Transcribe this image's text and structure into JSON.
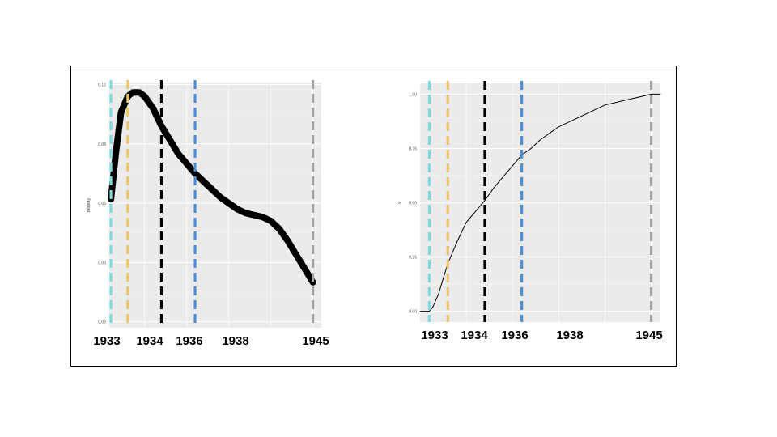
{
  "colors": {
    "panel_bg": "#ebebeb",
    "grid_major": "#ffffff",
    "grid_minor": "#f4f4f4",
    "tick_text": "#4d4d4d",
    "curve": "#000000",
    "vline_1933": "#7fd9e0",
    "vline_1934": "#ecc466",
    "vline_1936": "#000000",
    "vline_1938": "#4a8ed8",
    "vline_1945": "#a3a3a3"
  },
  "year_labels": [
    "1933",
    "1934",
    "1936",
    "1938",
    "1945"
  ],
  "chart_data": [
    {
      "type": "line",
      "ylabel": "density",
      "xlim": [
        1932.9,
        1945.5
      ],
      "ylim": [
        -0.003,
        0.121
      ],
      "yticks": [
        0.0,
        0.03,
        0.06,
        0.09,
        0.12
      ],
      "ytick_labels": [
        "0.00",
        "0.03",
        "0.06",
        "0.09",
        "0.12"
      ],
      "xgrid": [
        1935,
        1937.5,
        1940,
        1942.5,
        1945
      ],
      "vlines": [
        1933,
        1934,
        1936,
        1938,
        1945
      ],
      "x": [
        1933.0,
        1933.3,
        1933.6,
        1934.0,
        1934.3,
        1934.7,
        1935.0,
        1935.5,
        1936.0,
        1936.5,
        1937.0,
        1937.5,
        1938.0,
        1938.5,
        1939.0,
        1939.5,
        1940.0,
        1940.5,
        1941.0,
        1941.5,
        1942.0,
        1942.5,
        1943.0,
        1943.5,
        1944.0,
        1944.5,
        1945.0
      ],
      "y": [
        0.062,
        0.086,
        0.106,
        0.114,
        0.116,
        0.116,
        0.114,
        0.108,
        0.099,
        0.092,
        0.085,
        0.08,
        0.075,
        0.071,
        0.067,
        0.063,
        0.06,
        0.057,
        0.055,
        0.054,
        0.053,
        0.051,
        0.047,
        0.041,
        0.034,
        0.027,
        0.02
      ]
    },
    {
      "type": "line",
      "ylabel": "y",
      "xlim": [
        1932.5,
        1945.5
      ],
      "ylim": [
        -0.05,
        1.05
      ],
      "yticks": [
        0.0,
        0.25,
        0.5,
        0.75,
        1.0
      ],
      "ytick_labels": [
        "0.00",
        "0.25",
        "0.50",
        "0.75",
        "1.00"
      ],
      "xgrid": [
        1935,
        1937.5,
        1940,
        1942.5,
        1945
      ],
      "vlines": [
        1933,
        1934,
        1936,
        1938,
        1945
      ],
      "x": [
        1932.5,
        1933.0,
        1933.2,
        1933.5,
        1934.0,
        1934.5,
        1935.0,
        1935.5,
        1936.0,
        1936.5,
        1937.0,
        1937.5,
        1938.0,
        1938.5,
        1939.0,
        1939.5,
        1940.0,
        1940.5,
        1941.0,
        1941.5,
        1942.0,
        1942.5,
        1943.0,
        1943.5,
        1944.0,
        1944.5,
        1945.0,
        1945.5
      ],
      "y": [
        0.0,
        0.0,
        0.02,
        0.08,
        0.22,
        0.32,
        0.41,
        0.46,
        0.51,
        0.57,
        0.62,
        0.67,
        0.72,
        0.75,
        0.79,
        0.82,
        0.85,
        0.87,
        0.89,
        0.91,
        0.93,
        0.95,
        0.96,
        0.97,
        0.98,
        0.99,
        1.0,
        1.0
      ]
    }
  ]
}
